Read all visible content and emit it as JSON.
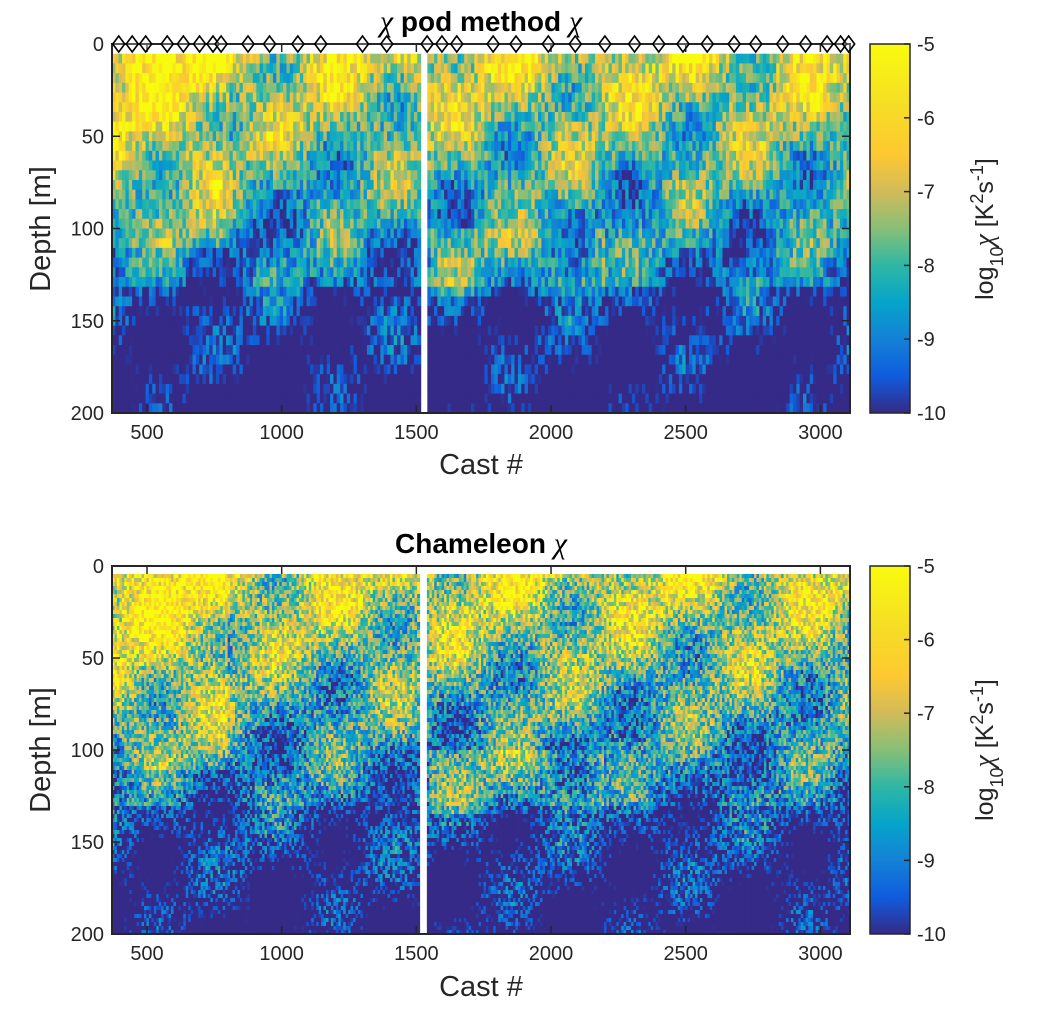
{
  "chart_data": [
    {
      "type": "heatmap",
      "title": "pod method",
      "title_symbol": "χ",
      "xlabel": "Cast #",
      "ylabel": "Depth [m]",
      "xlim": [
        370,
        3110
      ],
      "ylim": [
        0,
        200
      ],
      "y_reversed": true,
      "xticks": [
        500,
        1000,
        1500,
        2000,
        2500,
        3000
      ],
      "yticks": [
        0,
        50,
        100,
        150,
        200
      ],
      "colormap": "parula",
      "clim": [
        -10,
        -5
      ],
      "colorbar_ticks": [
        -5,
        -6,
        -7,
        -8,
        -9,
        -10
      ],
      "colorbar_label": "log10χ [K2s-1]",
      "colorbar_label_parts": {
        "pre": "log",
        "sub": "10",
        "chi": "χ",
        "open": " [K",
        "sup1": "2",
        "mid": "s",
        "sup2": "-1",
        "close": "]"
      },
      "markers": {
        "shape": "diamond",
        "depth": 0,
        "casts": [
          395,
          445,
          495,
          575,
          635,
          695,
          745,
          775,
          875,
          955,
          1060,
          1145,
          1300,
          1390,
          1540,
          1595,
          1650,
          1785,
          1870,
          1990,
          2090,
          2200,
          2310,
          2400,
          2490,
          2580,
          2680,
          2760,
          2860,
          2945,
          3025,
          3075,
          3105
        ]
      },
      "data_gaps": [
        [
          1510,
          1540
        ]
      ],
      "description_fields": {
        "surface_high": "values near -6 to -5 in top 50 m",
        "deep_low": "values near -10 to -9 below ~130 m"
      }
    },
    {
      "type": "heatmap",
      "title": "Chameleon",
      "title_symbol": "χ",
      "xlabel": "Cast #",
      "ylabel": "Depth [m]",
      "xlim": [
        370,
        3110
      ],
      "ylim": [
        0,
        200
      ],
      "y_reversed": true,
      "xticks": [
        500,
        1000,
        1500,
        2000,
        2500,
        3000
      ],
      "yticks": [
        0,
        50,
        100,
        150,
        200
      ],
      "colormap": "parula",
      "clim": [
        -10,
        -5
      ],
      "colorbar_ticks": [
        -5,
        -6,
        -7,
        -8,
        -9,
        -10
      ],
      "colorbar_label": "log10χ [K2s-1]",
      "colorbar_label_parts": {
        "pre": "log",
        "sub": "10",
        "chi": "χ",
        "open": " [K",
        "sup1": "2",
        "mid": "s",
        "sup2": "-1",
        "close": "]"
      },
      "data_gaps": [
        [
          1510,
          1540
        ]
      ]
    }
  ]
}
